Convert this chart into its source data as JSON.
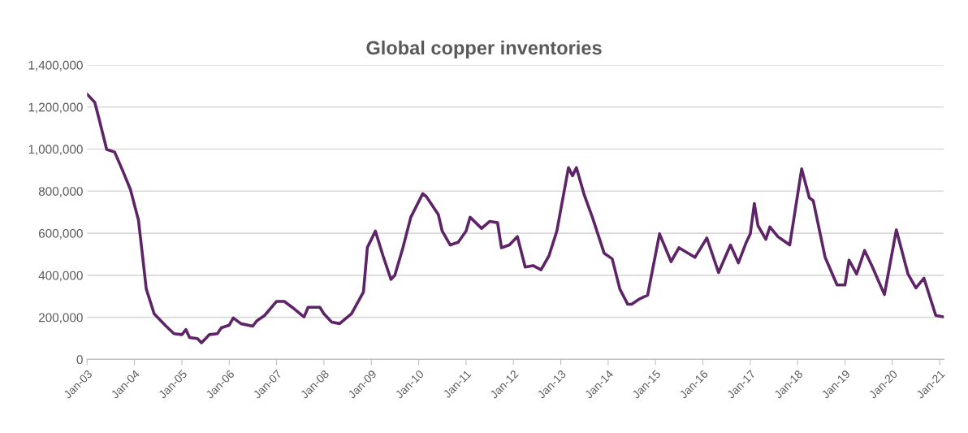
{
  "chart_data": {
    "type": "line",
    "title": "Global copper inventories",
    "x": [
      "2003-01",
      "2003-03",
      "2003-04",
      "2003-06",
      "2003-08",
      "2003-10",
      "2003-12",
      "2004-02",
      "2004-03",
      "2004-04",
      "2004-06",
      "2004-09",
      "2004-11",
      "2005-01",
      "2005-02",
      "2005-03",
      "2005-05",
      "2005-06",
      "2005-08",
      "2005-10",
      "2005-11",
      "2006-01",
      "2006-02",
      "2006-04",
      "2006-07",
      "2006-08",
      "2006-10",
      "2007-01",
      "2007-03",
      "2007-05",
      "2007-07",
      "2007-08",
      "2007-09",
      "2007-12",
      "2008-01",
      "2008-03",
      "2008-05",
      "2008-08",
      "2008-11",
      "2008-12",
      "2009-02",
      "2009-04",
      "2009-06",
      "2009-07",
      "2009-09",
      "2009-11",
      "2010-02",
      "2010-03",
      "2010-06",
      "2010-07",
      "2010-09",
      "2010-11",
      "2011-01",
      "2011-02",
      "2011-05",
      "2011-07",
      "2011-09",
      "2011-10",
      "2011-12",
      "2012-02",
      "2012-04",
      "2012-06",
      "2012-08",
      "2012-10",
      "2012-12",
      "2013-03",
      "2013-04",
      "2013-05",
      "2013-07",
      "2013-09",
      "2013-12",
      "2014-02",
      "2014-04",
      "2014-06",
      "2014-07",
      "2014-09",
      "2014-11",
      "2015-02",
      "2015-05",
      "2015-07",
      "2015-11",
      "2016-02",
      "2016-05",
      "2016-08",
      "2016-10",
      "2016-12",
      "2017-01",
      "2017-02",
      "2017-03",
      "2017-05",
      "2017-06",
      "2017-08",
      "2017-11",
      "2018-02",
      "2018-04",
      "2018-05",
      "2018-08",
      "2018-11",
      "2019-01",
      "2019-02",
      "2019-04",
      "2019-06",
      "2019-08",
      "2019-11",
      "2020-02",
      "2020-05",
      "2020-07",
      "2020-09",
      "2020-12",
      "2021-02"
    ],
    "series": [
      {
        "color": "#5e2468",
        "values": [
          1261000,
          1222000,
          1149000,
          998000,
          986000,
          899000,
          808000,
          662000,
          505000,
          335000,
          217000,
          158000,
          122000,
          118000,
          142000,
          104000,
          99000,
          79000,
          118000,
          122000,
          150000,
          163000,
          197000,
          170000,
          158000,
          183000,
          209000,
          276000,
          276000,
          248000,
          217000,
          202000,
          248000,
          248000,
          217000,
          177000,
          170000,
          217000,
          321000,
          532000,
          610000,
          492000,
          380000,
          400000,
          531000,
          676000,
          788000,
          774000,
          689000,
          610000,
          544000,
          557000,
          610000,
          676000,
          623000,
          656000,
          650000,
          531000,
          544000,
          584000,
          439000,
          446000,
          426000,
          492000,
          610000,
          912000,
          873000,
          912000,
          781000,
          676000,
          505000,
          478000,
          334000,
          262000,
          262000,
          288000,
          305000,
          597000,
          465000,
          531000,
          485000,
          577000,
          413000,
          544000,
          459000,
          557000,
          597000,
          741000,
          636000,
          571000,
          630000,
          584000,
          544000,
          906000,
          768000,
          755000,
          485000,
          354000,
          354000,
          472000,
          406000,
          518000,
          439000,
          308000,
          616000,
          406000,
          340000,
          386000,
          209000,
          202000
        ]
      }
    ],
    "xlim": [
      "2003-01",
      "2021-02"
    ],
    "xticks": [
      {
        "value": "2003-01",
        "label": "Jan-03"
      },
      {
        "value": "2004-01",
        "label": "Jan-04"
      },
      {
        "value": "2005-01",
        "label": "Jan-05"
      },
      {
        "value": "2006-01",
        "label": "Jan-06"
      },
      {
        "value": "2007-01",
        "label": "Jan-07"
      },
      {
        "value": "2008-01",
        "label": "Jan-08"
      },
      {
        "value": "2009-01",
        "label": "Jan-09"
      },
      {
        "value": "2010-01",
        "label": "Jan-10"
      },
      {
        "value": "2011-01",
        "label": "Jan-11"
      },
      {
        "value": "2012-01",
        "label": "Jan-12"
      },
      {
        "value": "2013-01",
        "label": "Jan-13"
      },
      {
        "value": "2014-01",
        "label": "Jan-14"
      },
      {
        "value": "2015-01",
        "label": "Jan-15"
      },
      {
        "value": "2016-01",
        "label": "Jan-16"
      },
      {
        "value": "2017-01",
        "label": "Jan-17"
      },
      {
        "value": "2018-01",
        "label": "Jan-18"
      },
      {
        "value": "2019-01",
        "label": "Jan-19"
      },
      {
        "value": "2020-01",
        "label": "Jan-20"
      },
      {
        "value": "2021-01",
        "label": "Jan-21"
      }
    ],
    "ylim": [
      0,
      1400000
    ],
    "yticks": [
      0,
      {
        "value": 200000,
        "label": "200,000"
      },
      {
        "value": 400000,
        "label": "400,000"
      },
      {
        "value": 600000,
        "label": "600,000"
      },
      {
        "value": 800000,
        "label": "800,000"
      },
      {
        "value": 1000000,
        "label": "1,000,000"
      },
      {
        "value": 1200000,
        "label": "1,200,000"
      },
      {
        "value": 1400000,
        "label": "1,400,000"
      }
    ],
    "grid": "y",
    "line_style": "solid"
  }
}
